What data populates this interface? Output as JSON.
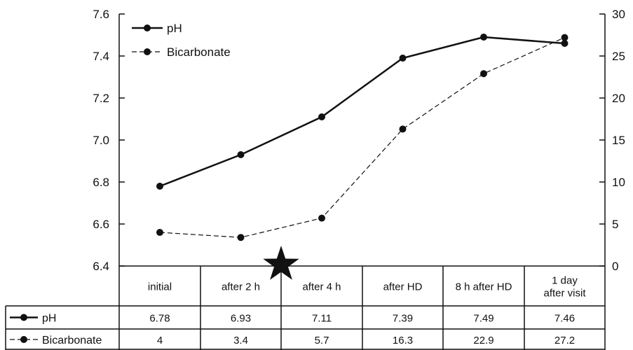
{
  "chart_data": {
    "type": "line",
    "categories": [
      [
        "initial"
      ],
      [
        "after  2 h"
      ],
      [
        "after 4 h"
      ],
      [
        "after HD"
      ],
      [
        "8 h after HD"
      ],
      [
        "1 day",
        "after visit"
      ]
    ],
    "series": [
      {
        "name": "pH",
        "axis": "left",
        "values": [
          6.78,
          6.93,
          7.11,
          7.39,
          7.49,
          7.46
        ],
        "line_style": "solid"
      },
      {
        "name": "Bicarbonate",
        "axis": "right",
        "values": [
          4,
          3.4,
          5.7,
          16.3,
          22.9,
          27.2
        ],
        "line_style": "dashed"
      }
    ],
    "ylim_left": [
      6.4,
      7.6
    ],
    "yticks_left": [
      "6.4",
      "6.6",
      "6.8",
      "7.0",
      "7.2",
      "7.4",
      "7.6"
    ],
    "ylim_right": [
      0,
      30
    ],
    "yticks_right": [
      "0",
      "5",
      "10",
      "15",
      "20",
      "25",
      "30"
    ],
    "legend_position": "top-left",
    "grid": false,
    "annotation": {
      "type": "star-marker",
      "category_boundary": "after  2 h | after 4 h"
    },
    "table_rows": [
      {
        "label": "pH",
        "cells": [
          "6.78",
          "6.93",
          "7.11",
          "7.39",
          "7.49",
          "7.46"
        ]
      },
      {
        "label": "Bicarbonate",
        "cells": [
          "4",
          "3.4",
          "5.7",
          "16.3",
          "22.9",
          "27.2"
        ]
      }
    ],
    "colors": {
      "line": "#111111",
      "background": "#ffffff"
    }
  }
}
